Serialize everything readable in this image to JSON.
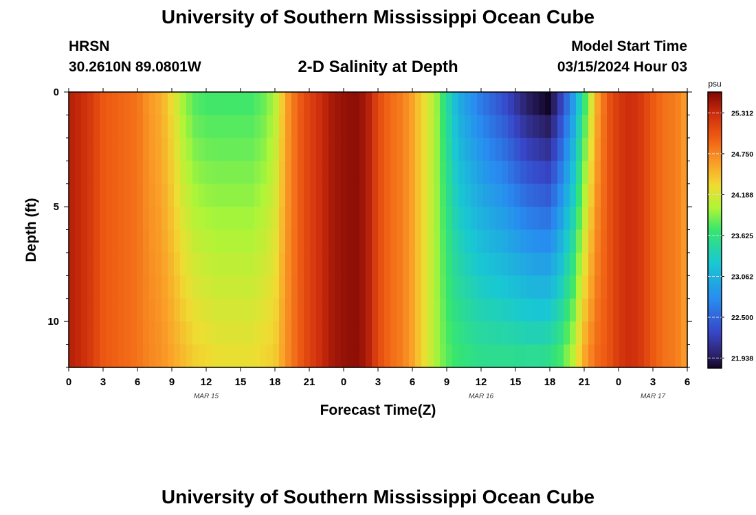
{
  "header": {
    "title": "University of Southern Mississippi Ocean Cube",
    "station": "HRSN",
    "coordinates": "30.2610N  89.0801W",
    "plot_title": "2-D Salinity at Depth",
    "start_label": "Model Start Time",
    "start_value": "03/15/2024 Hour 03"
  },
  "footer": {
    "title": "University of Southern Mississippi Ocean Cube"
  },
  "chart_data": {
    "type": "heatmap",
    "title": "2-D Salinity at Depth",
    "xlabel": "Forecast Time(Z)",
    "ylabel": "Depth (ft)",
    "x_range_hours": [
      0,
      54
    ],
    "y_range_ft": [
      0,
      12
    ],
    "x_tick_labels": [
      "0",
      "3",
      "6",
      "9",
      "12",
      "15",
      "18",
      "21",
      "0",
      "3",
      "6",
      "9",
      "12",
      "15",
      "18",
      "21",
      "0",
      "3",
      "6"
    ],
    "y_tick_labels": [
      "0",
      "5",
      "10"
    ],
    "y_tick_values": [
      0,
      5,
      10
    ],
    "day_labels": [
      {
        "label": "MAR 15",
        "hour": 12
      },
      {
        "label": "MAR 16",
        "hour": 36
      },
      {
        "label": "MAR 17",
        "hour": 51
      }
    ],
    "colorbar": {
      "unit": "psu",
      "min": 21.8,
      "max": 25.6,
      "ticks": [
        "25.312",
        "24.750",
        "24.188",
        "23.625",
        "23.062",
        "22.500",
        "21.938"
      ]
    },
    "time_profile": {
      "hours": [
        0,
        1,
        2,
        3,
        4,
        5,
        6,
        7,
        8,
        9,
        10,
        11,
        12,
        13,
        14,
        15,
        16,
        17,
        18,
        19,
        20,
        21,
        22,
        23,
        24,
        25,
        26,
        27,
        28,
        29,
        30,
        31,
        32,
        33,
        34,
        35,
        36,
        37,
        38,
        39,
        40,
        41,
        42,
        43,
        44,
        45,
        46,
        47,
        48,
        49,
        50,
        51,
        52,
        53,
        54
      ],
      "surface_psu": [
        25.4,
        25.32,
        25.2,
        25.0,
        24.95,
        24.9,
        24.85,
        24.65,
        24.55,
        24.3,
        23.95,
        23.75,
        23.7,
        23.7,
        23.7,
        23.7,
        23.7,
        23.8,
        24.0,
        24.6,
        24.95,
        25.15,
        25.3,
        25.45,
        25.52,
        25.55,
        25.45,
        25.1,
        24.9,
        24.8,
        24.6,
        24.3,
        24.0,
        23.5,
        23.0,
        22.8,
        22.6,
        22.45,
        22.3,
        22.1,
        21.9,
        21.8,
        21.7,
        22.2,
        22.8,
        23.6,
        24.5,
        25.0,
        25.2,
        25.3,
        25.2,
        25.0,
        24.85,
        24.8,
        24.6
      ],
      "bottom_psu": [
        25.4,
        25.32,
        25.2,
        25.0,
        24.95,
        24.9,
        24.85,
        24.75,
        24.7,
        24.6,
        24.5,
        24.4,
        24.35,
        24.3,
        24.3,
        24.3,
        24.3,
        24.35,
        24.4,
        24.7,
        24.95,
        25.15,
        25.3,
        25.45,
        25.52,
        25.55,
        25.45,
        25.1,
        24.9,
        24.8,
        24.6,
        24.3,
        24.0,
        23.8,
        23.7,
        23.65,
        23.6,
        23.6,
        23.6,
        23.6,
        23.6,
        23.6,
        23.65,
        23.8,
        24.1,
        24.6,
        24.9,
        25.0,
        25.2,
        25.3,
        25.2,
        25.0,
        24.85,
        24.8,
        24.6
      ]
    }
  }
}
